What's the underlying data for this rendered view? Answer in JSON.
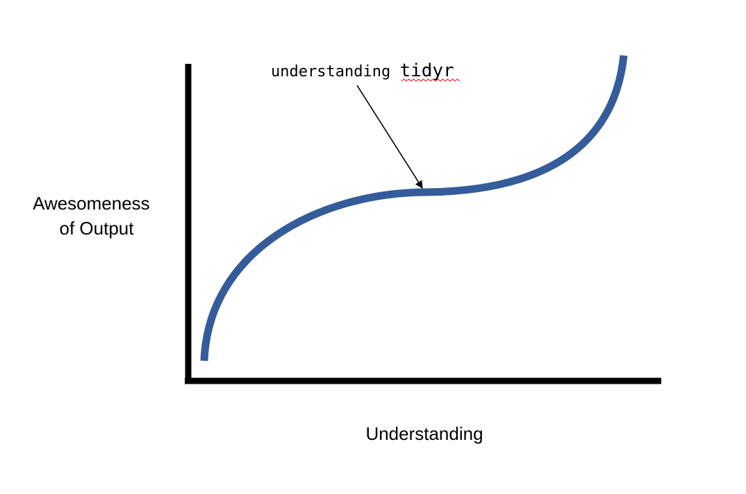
{
  "diagram": {
    "y_axis_label": [
      "Awesomeness",
      "of Output"
    ],
    "x_axis_label": "Understanding",
    "annotation": {
      "prefix": "understanding ",
      "code": "tidyr"
    },
    "colors": {
      "curve": "#355C9A",
      "axes": "#000000",
      "arrow": "#000000",
      "spellcheck_underline": "#E0303A"
    }
  }
}
